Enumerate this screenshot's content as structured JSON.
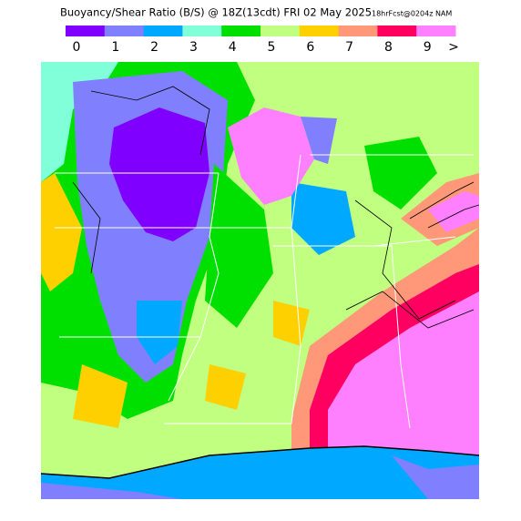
{
  "header": {
    "title": "Buoyancy/Shear Ratio (B/S) @ 18Z(13cdt) FRI 02 May 2025",
    "subtitle": "18hrFcst@0204z NAM"
  },
  "legend": {
    "items": [
      {
        "label": "0",
        "color": "#8000ff"
      },
      {
        "label": "1",
        "color": "#8080ff"
      },
      {
        "label": "2",
        "color": "#00a8ff"
      },
      {
        "label": "3",
        "color": "#80ffd8"
      },
      {
        "label": "4",
        "color": "#00e000"
      },
      {
        "label": "5",
        "color": "#c0ff80"
      },
      {
        "label": "6",
        "color": "#ffd000"
      },
      {
        "label": "7",
        "color": "#ff9878"
      },
      {
        "label": "8",
        "color": "#ff0060"
      },
      {
        "label": "9",
        "color": "#ff80ff"
      }
    ],
    "overflow": ">"
  }
}
